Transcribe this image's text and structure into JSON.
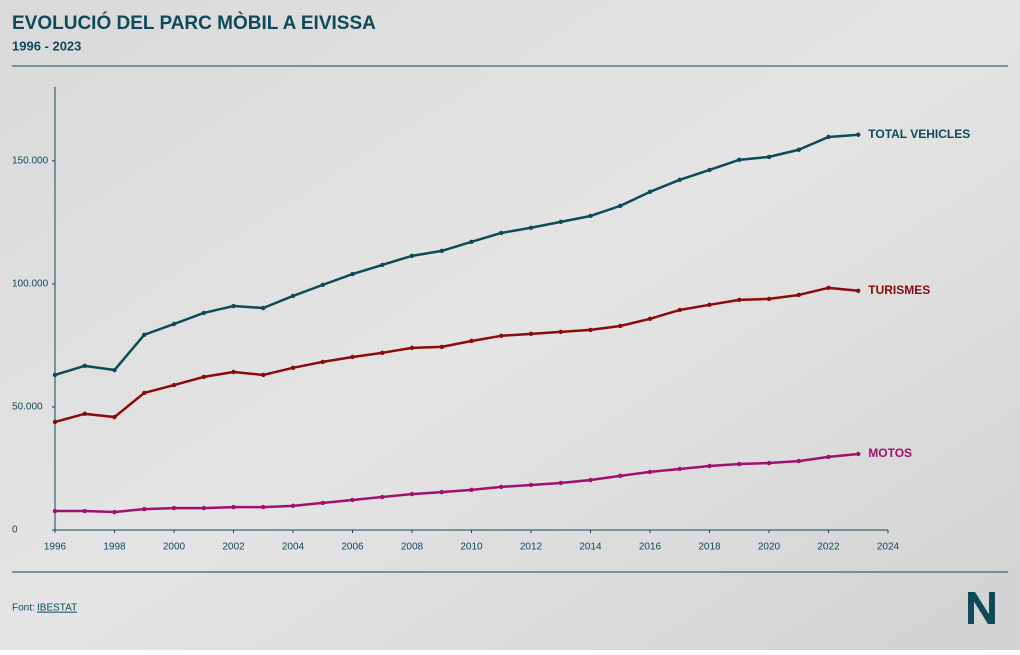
{
  "chart_data": {
    "type": "line",
    "title": "EVOLUCIÓ DEL PARC MÒBIL A EIVISSA",
    "subtitle": "1996 - 2023",
    "source_label": "Font:",
    "source": "IBESTAT",
    "x": [
      1996,
      1997,
      1998,
      1999,
      2000,
      2001,
      2002,
      2003,
      2004,
      2005,
      2006,
      2007,
      2008,
      2009,
      2010,
      2011,
      2012,
      2013,
      2014,
      2015,
      2016,
      2017,
      2018,
      2019,
      2020,
      2021,
      2022,
      2023
    ],
    "series": [
      {
        "name": "TOTAL VEHICLES",
        "color": "#0d4a5a",
        "values": [
          63000,
          66700,
          65000,
          79300,
          83700,
          88200,
          91000,
          90200,
          95100,
          99600,
          104000,
          107700,
          111400,
          113400,
          117100,
          120700,
          122800,
          125200,
          127600,
          131700,
          137400,
          142300,
          146300,
          150400,
          151600,
          154500,
          159700,
          160600
        ]
      },
      {
        "name": "TURISMES",
        "color": "#8b0a0a",
        "values": [
          43900,
          47200,
          45900,
          55700,
          58900,
          62200,
          64200,
          63000,
          65900,
          68300,
          70300,
          72000,
          74000,
          74400,
          76800,
          78900,
          79700,
          80500,
          81300,
          82900,
          85800,
          89400,
          91500,
          93500,
          93900,
          95500,
          98400,
          97200
        ]
      },
      {
        "name": "MOTOS",
        "color": "#a0106e",
        "values": [
          7700,
          7700,
          7300,
          8500,
          8900,
          8900,
          9300,
          9300,
          9800,
          11000,
          12200,
          13400,
          14600,
          15400,
          16300,
          17500,
          18300,
          19100,
          20300,
          22000,
          23600,
          24800,
          26000,
          26800,
          27200,
          28000,
          29700,
          30900
        ]
      }
    ],
    "xlim": [
      1996,
      2024
    ],
    "xticks": [
      1996,
      1998,
      2000,
      2002,
      2004,
      2006,
      2008,
      2010,
      2012,
      2014,
      2016,
      2018,
      2020,
      2022,
      2024
    ],
    "ylim": [
      0,
      180000
    ],
    "yticks": [
      0,
      {
        "value": 50000,
        "label": "50.000"
      },
      {
        "value": 100000,
        "label": "100.000"
      },
      {
        "value": 150000,
        "label": "150.000"
      }
    ]
  }
}
